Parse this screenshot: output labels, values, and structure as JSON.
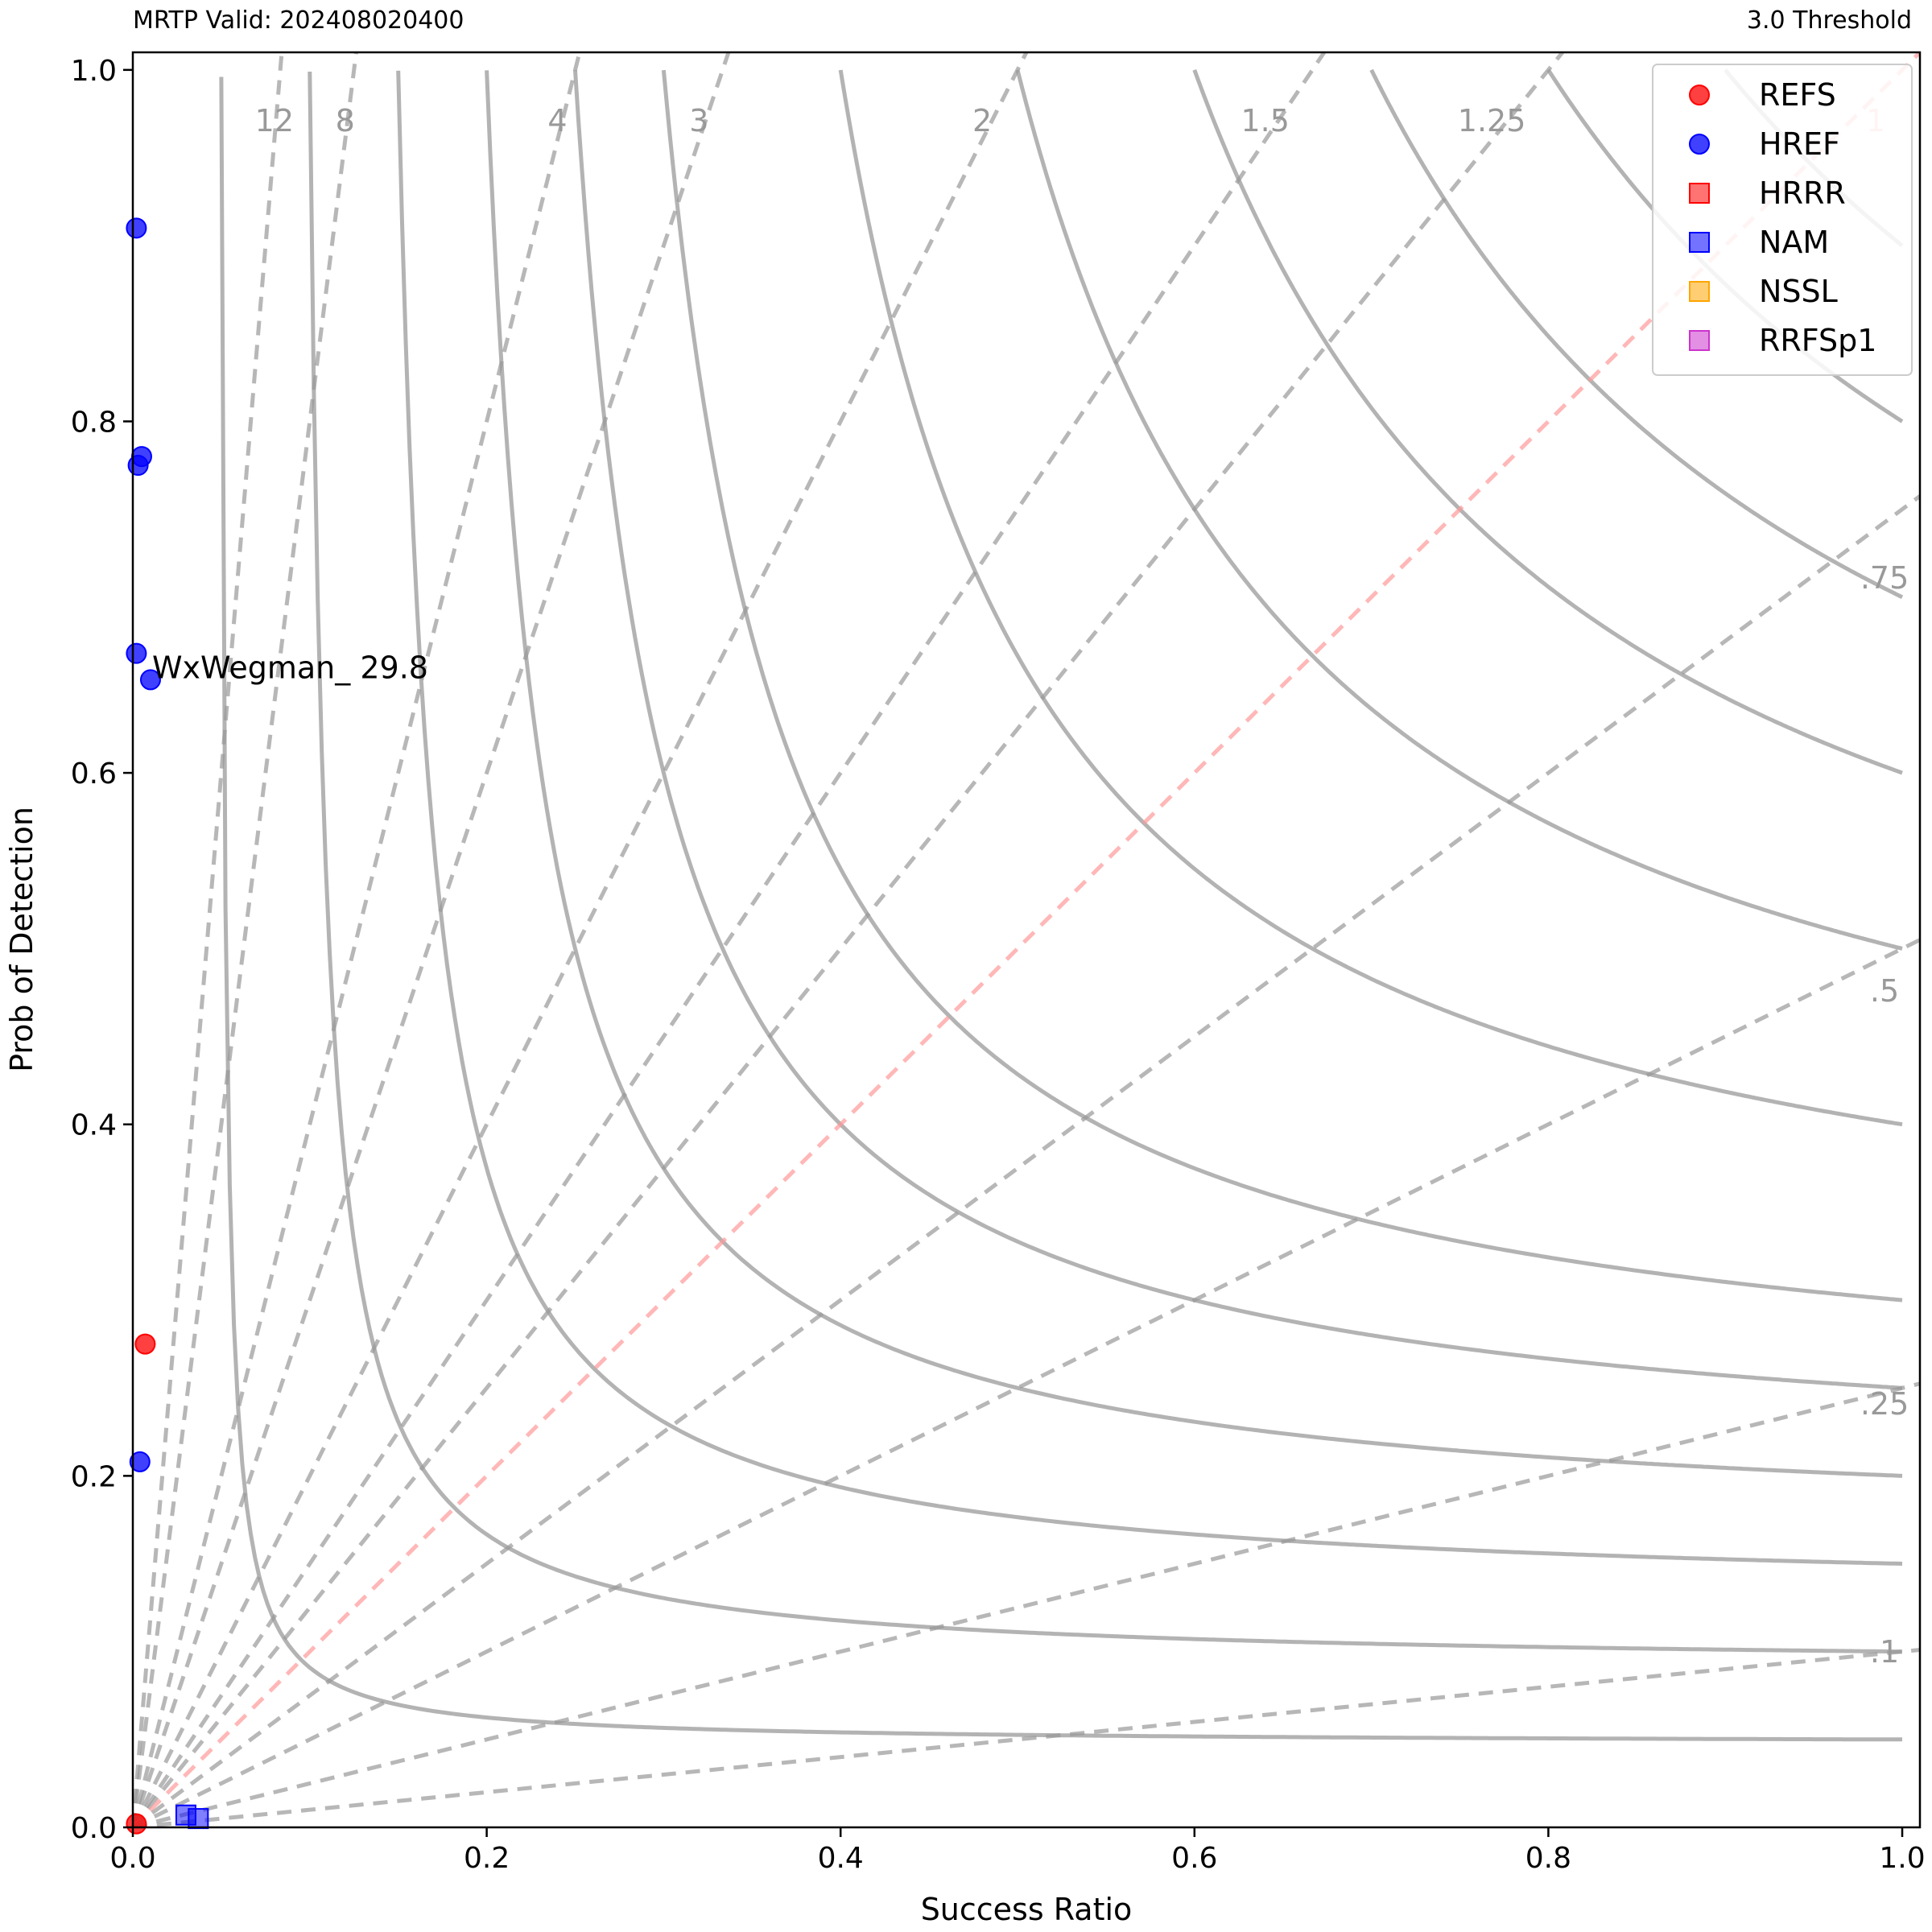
{
  "header": {
    "left": "MRTP Valid: 202408020400",
    "right": "3.0 Threshold"
  },
  "chart_data": {
    "type": "scatter",
    "title": "",
    "xlabel": "Success Ratio",
    "ylabel": "Prob of Detection",
    "xlim": [
      0,
      1.01
    ],
    "ylim": [
      0,
      1.01
    ],
    "xticks": [
      0.0,
      0.2,
      0.4,
      0.6,
      0.8,
      1.0
    ],
    "yticks": [
      0.0,
      0.2,
      0.4,
      0.6,
      0.8,
      1.0
    ],
    "xtick_labels": [
      "0.0",
      "0.2",
      "0.4",
      "0.6",
      "0.8",
      "1.0"
    ],
    "ytick_labels": [
      "0.0",
      "0.2",
      "0.4",
      "0.6",
      "0.8",
      "1.0"
    ],
    "grid": false,
    "legend_position": "top-right",
    "csi_contours": [
      0.05,
      0.1,
      0.15,
      0.2,
      0.25,
      0.3,
      0.4,
      0.5,
      0.6,
      0.7,
      0.8,
      0.9
    ],
    "bias_lines": [
      {
        "bias": 12,
        "label": "12"
      },
      {
        "bias": 8,
        "label": "8"
      },
      {
        "bias": 4,
        "label": "4"
      },
      {
        "bias": 3,
        "label": "3"
      },
      {
        "bias": 2,
        "label": "2"
      },
      {
        "bias": 1.5,
        "label": "1.5"
      },
      {
        "bias": 1.25,
        "label": "1.25"
      },
      {
        "bias": 1,
        "label": "1"
      },
      {
        "bias": 0.75,
        "label": ".75"
      },
      {
        "bias": 0.5,
        "label": ".5"
      },
      {
        "bias": 0.25,
        "label": ".25"
      },
      {
        "bias": 0.1,
        "label": ".1"
      }
    ],
    "series": [
      {
        "name": "REFS",
        "marker": "circle",
        "color": "#ff0000",
        "points": [
          [
            0.007,
            0.275
          ],
          [
            0.002,
            0.002
          ]
        ]
      },
      {
        "name": "HREF",
        "marker": "circle",
        "color": "#0000ff",
        "points": [
          [
            0.002,
            0.91
          ],
          [
            0.005,
            0.78
          ],
          [
            0.003,
            0.775
          ],
          [
            0.002,
            0.668
          ],
          [
            0.01,
            0.653
          ],
          [
            0.004,
            0.208
          ]
        ]
      },
      {
        "name": "HRRR",
        "marker": "square",
        "color": "#ff0000",
        "points": []
      },
      {
        "name": "NAM",
        "marker": "square",
        "color": "#0000ff",
        "points": [
          [
            0.03,
            0.007
          ],
          [
            0.037,
            0.005
          ]
        ]
      },
      {
        "name": "NSSL",
        "marker": "square",
        "color": "#ffa500",
        "points": []
      },
      {
        "name": "RRFSp1",
        "marker": "square",
        "color": "#cc33cc",
        "points": []
      }
    ],
    "annotations": [
      {
        "text": "WxWegman_ 29.8",
        "x": 0.01,
        "y": 0.653
      }
    ]
  }
}
